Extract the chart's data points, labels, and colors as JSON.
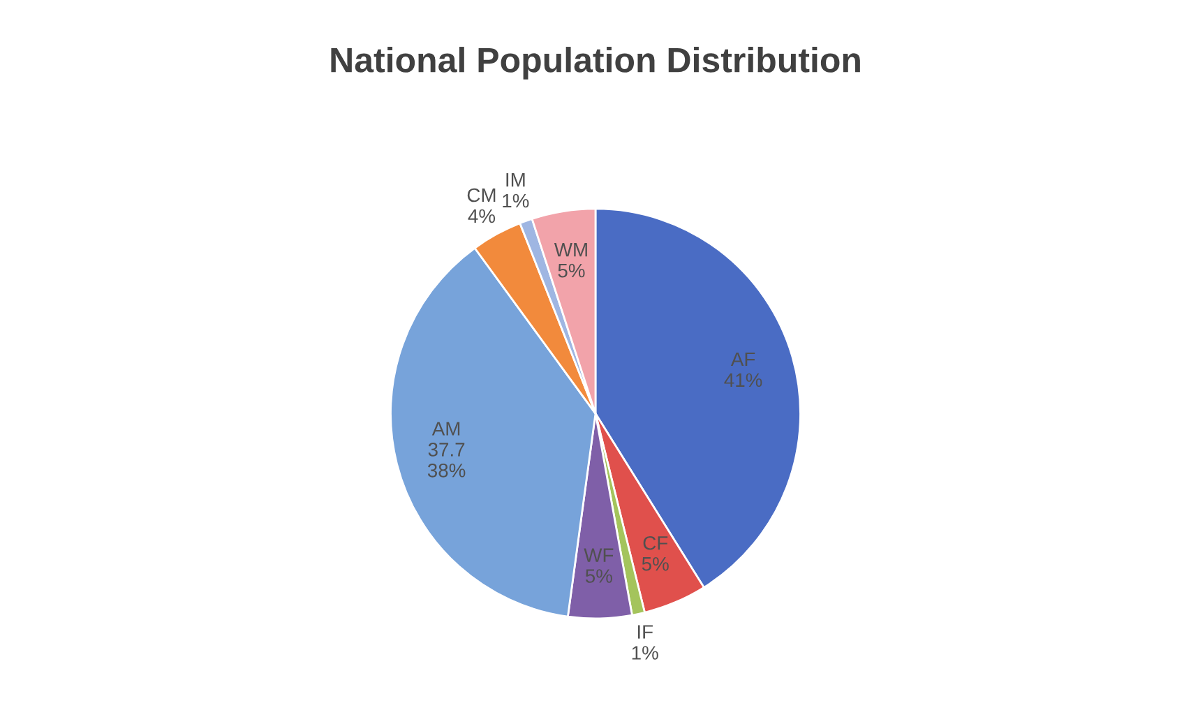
{
  "chart_data": {
    "type": "pie",
    "title": "National Population Distribution",
    "categories": [
      "AF",
      "CF",
      "IF",
      "WF",
      "AM",
      "CM",
      "IM",
      "WM"
    ],
    "values": [
      41,
      5,
      1,
      5,
      37.7,
      4,
      1,
      5
    ],
    "value_labels": [
      "41%",
      "5%",
      "1%",
      "5%",
      "37.7\n38%",
      "4%",
      "1%",
      "5%"
    ],
    "colors": [
      "#4a6cc4",
      "#e0504c",
      "#a4c45c",
      "#7f5fa8",
      "#77a3da",
      "#f28a3c",
      "#9fb6e2",
      "#f2a3aa"
    ],
    "legend": false
  }
}
